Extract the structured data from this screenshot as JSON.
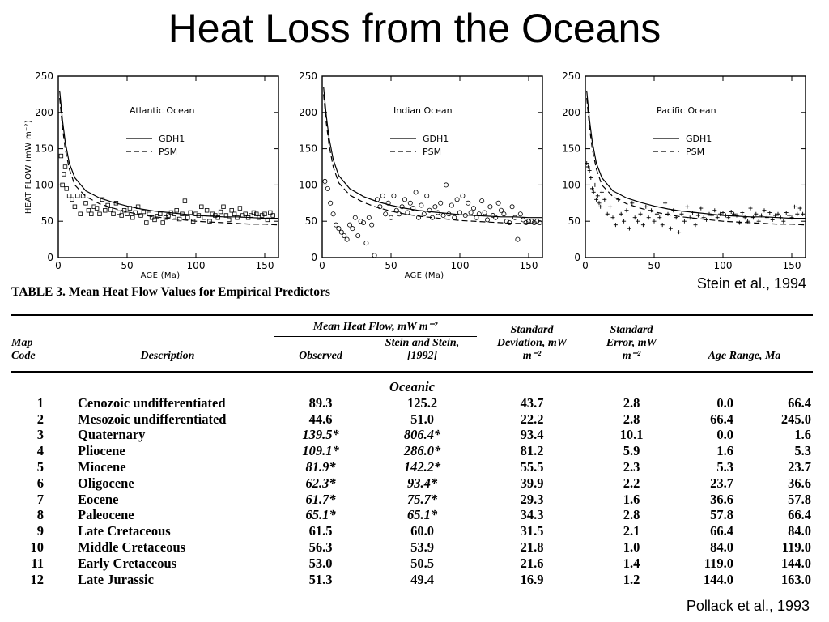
{
  "slide": {
    "title": "Heat Loss from the Oceans",
    "citation_top": "Stein et al., 1994",
    "citation_bottom": "Pollack et al., 1993"
  },
  "chart_data": [
    {
      "type": "scatter",
      "title": "Atlantic Ocean",
      "xlabel": "AGE (Ma)",
      "ylabel": "HEAT FLOW (mW m⁻²)",
      "xlim": [
        0,
        160
      ],
      "ylim": [
        0,
        250
      ],
      "xticks": [
        0,
        50,
        100,
        150
      ],
      "yticks": [
        0,
        50,
        100,
        150,
        200,
        250
      ],
      "legend": [
        "GDH1",
        "PSM"
      ],
      "legend_position": "top-center",
      "marker": "square",
      "series": [
        {
          "name": "GDH1",
          "kind": "line",
          "dash": "solid",
          "x": [
            1,
            3,
            5,
            8,
            12,
            20,
            30,
            40,
            50,
            60,
            70,
            80,
            90,
            100,
            110,
            120,
            130,
            140,
            150,
            160
          ],
          "y": [
            230,
            190,
            160,
            130,
            110,
            92,
            82,
            76,
            71,
            67,
            64,
            62,
            60,
            58,
            57,
            56,
            56,
            55,
            54,
            54
          ]
        },
        {
          "name": "PSM",
          "kind": "line",
          "dash": "dashed",
          "x": [
            1,
            3,
            5,
            8,
            12,
            20,
            30,
            40,
            50,
            60,
            70,
            80,
            90,
            100,
            110,
            120,
            130,
            140,
            150,
            160
          ],
          "y": [
            220,
            180,
            150,
            122,
            100,
            84,
            74,
            68,
            63,
            59,
            56,
            54,
            52,
            50,
            49,
            48,
            47,
            46,
            46,
            45
          ]
        },
        {
          "name": "observed",
          "kind": "points",
          "x": [
            2,
            3,
            4,
            5,
            6,
            8,
            10,
            12,
            14,
            16,
            18,
            20,
            22,
            24,
            26,
            28,
            30,
            32,
            34,
            36,
            38,
            40,
            42,
            44,
            46,
            48,
            50,
            52,
            54,
            56,
            58,
            60,
            62,
            64,
            66,
            68,
            70,
            72,
            74,
            76,
            78,
            80,
            82,
            84,
            86,
            88,
            90,
            92,
            94,
            96,
            98,
            100,
            102,
            104,
            106,
            108,
            110,
            112,
            114,
            116,
            118,
            120,
            122,
            124,
            126,
            128,
            130,
            132,
            134,
            136,
            138,
            140,
            142,
            144,
            146,
            148,
            150,
            152,
            154,
            156
          ],
          "y": [
            140,
            100,
            115,
            125,
            95,
            85,
            80,
            70,
            85,
            60,
            85,
            75,
            65,
            60,
            70,
            68,
            60,
            80,
            65,
            72,
            66,
            60,
            75,
            62,
            58,
            65,
            60,
            68,
            55,
            62,
            70,
            58,
            63,
            48,
            60,
            55,
            52,
            57,
            60,
            48,
            55,
            58,
            62,
            55,
            65,
            53,
            60,
            78,
            55,
            62,
            50,
            60,
            58,
            70,
            55,
            65,
            50,
            60,
            58,
            55,
            63,
            70,
            58,
            52,
            65,
            60,
            55,
            68,
            58,
            60,
            55,
            58,
            62,
            60,
            55,
            58,
            60,
            52,
            62,
            58
          ]
        }
      ]
    },
    {
      "type": "scatter",
      "title": "Indian Ocean",
      "xlabel": "AGE (Ma)",
      "ylabel": "",
      "xlim": [
        0,
        160
      ],
      "ylim": [
        0,
        250
      ],
      "xticks": [
        0,
        50,
        100,
        150
      ],
      "yticks": [
        0,
        50,
        100,
        150,
        200,
        250
      ],
      "legend": [
        "GDH1",
        "PSM"
      ],
      "legend_position": "top-center",
      "marker": "circle",
      "series": [
        {
          "name": "GDH1",
          "kind": "line",
          "dash": "solid",
          "x": [
            1,
            3,
            5,
            8,
            12,
            20,
            30,
            40,
            50,
            60,
            70,
            80,
            90,
            100,
            110,
            120,
            130,
            140,
            150,
            160
          ],
          "y": [
            235,
            195,
            165,
            135,
            113,
            95,
            84,
            77,
            72,
            68,
            65,
            63,
            61,
            59,
            58,
            57,
            56,
            56,
            55,
            55
          ]
        },
        {
          "name": "PSM",
          "kind": "line",
          "dash": "dashed",
          "x": [
            1,
            3,
            5,
            8,
            12,
            20,
            30,
            40,
            50,
            60,
            70,
            80,
            90,
            100,
            110,
            120,
            130,
            140,
            150,
            160
          ],
          "y": [
            225,
            185,
            155,
            125,
            103,
            86,
            76,
            69,
            64,
            60,
            57,
            55,
            53,
            51,
            50,
            49,
            48,
            47,
            47,
            46
          ]
        },
        {
          "name": "observed",
          "kind": "points",
          "x": [
            2,
            4,
            6,
            8,
            10,
            12,
            14,
            16,
            18,
            20,
            22,
            24,
            26,
            28,
            30,
            32,
            34,
            36,
            38,
            40,
            42,
            44,
            46,
            48,
            50,
            52,
            54,
            56,
            58,
            60,
            62,
            64,
            66,
            68,
            70,
            72,
            74,
            76,
            78,
            80,
            82,
            84,
            86,
            88,
            90,
            92,
            94,
            96,
            98,
            100,
            102,
            104,
            106,
            108,
            110,
            112,
            114,
            116,
            118,
            120,
            122,
            124,
            126,
            128,
            130,
            132,
            134,
            136,
            138,
            140,
            142,
            144,
            146,
            148,
            150,
            152,
            154,
            156,
            158
          ],
          "y": [
            105,
            95,
            75,
            60,
            45,
            40,
            35,
            30,
            25,
            45,
            40,
            55,
            30,
            50,
            48,
            20,
            55,
            45,
            3,
            80,
            70,
            85,
            60,
            75,
            55,
            85,
            65,
            60,
            70,
            80,
            62,
            75,
            68,
            90,
            55,
            72,
            60,
            85,
            65,
            55,
            70,
            62,
            75,
            58,
            100,
            60,
            72,
            55,
            80,
            62,
            85,
            58,
            75,
            62,
            68,
            55,
            60,
            78,
            62,
            52,
            70,
            58,
            55,
            75,
            65,
            60,
            50,
            48,
            70,
            55,
            25,
            60,
            52,
            48,
            50,
            50,
            48,
            50,
            48
          ]
        }
      ]
    },
    {
      "type": "scatter",
      "title": "Pacific Ocean",
      "xlabel": "",
      "ylabel": "",
      "xlim": [
        0,
        160
      ],
      "ylim": [
        0,
        250
      ],
      "xticks": [
        0,
        50,
        100,
        150
      ],
      "yticks": [
        0,
        50,
        100,
        150,
        200,
        250
      ],
      "legend": [
        "GDH1",
        "PSM"
      ],
      "legend_position": "top-center",
      "marker": "plus",
      "series": [
        {
          "name": "GDH1",
          "kind": "line",
          "dash": "solid",
          "x": [
            1,
            3,
            5,
            8,
            12,
            20,
            30,
            40,
            50,
            60,
            70,
            80,
            90,
            100,
            110,
            120,
            130,
            140,
            150,
            160
          ],
          "y": [
            230,
            190,
            160,
            130,
            110,
            92,
            82,
            76,
            71,
            67,
            64,
            62,
            60,
            58,
            57,
            56,
            56,
            55,
            54,
            54
          ]
        },
        {
          "name": "PSM",
          "kind": "line",
          "dash": "dashed",
          "x": [
            1,
            3,
            5,
            8,
            12,
            20,
            30,
            40,
            50,
            60,
            70,
            80,
            90,
            100,
            110,
            120,
            130,
            140,
            150,
            160
          ],
          "y": [
            220,
            180,
            150,
            122,
            100,
            84,
            74,
            68,
            63,
            59,
            56,
            54,
            52,
            50,
            49,
            48,
            47,
            46,
            46,
            45
          ]
        },
        {
          "name": "observed",
          "kind": "points",
          "x": [
            1,
            2,
            3,
            4,
            5,
            6,
            7,
            8,
            9,
            10,
            11,
            12,
            14,
            16,
            18,
            20,
            22,
            24,
            26,
            28,
            30,
            32,
            34,
            36,
            38,
            40,
            42,
            44,
            46,
            48,
            50,
            52,
            54,
            56,
            58,
            60,
            62,
            64,
            66,
            68,
            70,
            72,
            74,
            76,
            78,
            80,
            82,
            84,
            86,
            88,
            90,
            92,
            94,
            96,
            98,
            100,
            102,
            104,
            106,
            108,
            110,
            112,
            114,
            116,
            118,
            120,
            122,
            124,
            126,
            128,
            130,
            132,
            134,
            136,
            138,
            140,
            142,
            144,
            146,
            148,
            150,
            152,
            154,
            156,
            158
          ],
          "y": [
            130,
            125,
            120,
            110,
            95,
            90,
            100,
            80,
            85,
            75,
            70,
            90,
            80,
            60,
            70,
            55,
            45,
            80,
            60,
            50,
            65,
            40,
            75,
            55,
            50,
            60,
            45,
            70,
            55,
            65,
            50,
            60,
            55,
            45,
            75,
            60,
            40,
            65,
            55,
            35,
            60,
            50,
            70,
            55,
            62,
            45,
            58,
            68,
            55,
            52,
            60,
            58,
            65,
            55,
            60,
            62,
            58,
            55,
            63,
            60,
            58,
            48,
            62,
            55,
            50,
            68,
            55,
            60,
            50,
            58,
            65,
            55,
            62,
            52,
            58,
            60,
            55,
            50,
            62,
            58,
            55,
            70,
            60,
            68,
            60
          ]
        }
      ]
    },
    {
      "type": "table",
      "title": "TABLE 3. Mean Heat Flow Values for Empirical Predictors",
      "headers": {
        "map_code": "Map Code",
        "description": "Description",
        "mean_heat_flow": "Mean Heat Flow, mW m⁻²",
        "observed": "Observed",
        "stein": "Stein and Stein, [1992]",
        "std_dev": "Standard Deviation, mW m⁻²",
        "std_err": "Standard Error, mW m⁻²",
        "age_range": "Age Range, Ma",
        "section": "Oceanic"
      },
      "rows": [
        {
          "code": "1",
          "description": "Cenozoic undifferentiated",
          "observed": "89.3",
          "stein": "125.2",
          "std_dev": "43.7",
          "std_err": "2.8",
          "age_min": "0.0",
          "age_max": "66.4",
          "italic": false
        },
        {
          "code": "2",
          "description": "Mesozoic undifferentiated",
          "observed": "44.6",
          "stein": "51.0",
          "std_dev": "22.2",
          "std_err": "2.8",
          "age_min": "66.4",
          "age_max": "245.0",
          "italic": false
        },
        {
          "code": "3",
          "description": "Quaternary",
          "observed": "139.5*",
          "stein": "806.4*",
          "std_dev": "93.4",
          "std_err": "10.1",
          "age_min": "0.0",
          "age_max": "1.6",
          "italic": true
        },
        {
          "code": "4",
          "description": "Pliocene",
          "observed": "109.1*",
          "stein": "286.0*",
          "std_dev": "81.2",
          "std_err": "5.9",
          "age_min": "1.6",
          "age_max": "5.3",
          "italic": true
        },
        {
          "code": "5",
          "description": "Miocene",
          "observed": "81.9*",
          "stein": "142.2*",
          "std_dev": "55.5",
          "std_err": "2.3",
          "age_min": "5.3",
          "age_max": "23.7",
          "italic": true
        },
        {
          "code": "6",
          "description": "Oligocene",
          "observed": "62.3*",
          "stein": "93.4*",
          "std_dev": "39.9",
          "std_err": "2.2",
          "age_min": "23.7",
          "age_max": "36.6",
          "italic": true
        },
        {
          "code": "7",
          "description": "Eocene",
          "observed": "61.7*",
          "stein": "75.7*",
          "std_dev": "29.3",
          "std_err": "1.6",
          "age_min": "36.6",
          "age_max": "57.8",
          "italic": true
        },
        {
          "code": "8",
          "description": "Paleocene",
          "observed": "65.1*",
          "stein": "65.1*",
          "std_dev": "34.3",
          "std_err": "2.8",
          "age_min": "57.8",
          "age_max": "66.4",
          "italic": true
        },
        {
          "code": "9",
          "description": "Late Cretaceous",
          "observed": "61.5",
          "stein": "60.0",
          "std_dev": "31.5",
          "std_err": "2.1",
          "age_min": "66.4",
          "age_max": "84.0",
          "italic": false
        },
        {
          "code": "10",
          "description": "Middle Cretaceous",
          "observed": "56.3",
          "stein": "53.9",
          "std_dev": "21.8",
          "std_err": "1.0",
          "age_min": "84.0",
          "age_max": "119.0",
          "italic": false
        },
        {
          "code": "11",
          "description": "Early Cretaceous",
          "observed": "53.0",
          "stein": "50.5",
          "std_dev": "21.6",
          "std_err": "1.4",
          "age_min": "119.0",
          "age_max": "144.0",
          "italic": false
        },
        {
          "code": "12",
          "description": "Late Jurassic",
          "observed": "51.3",
          "stein": "49.4",
          "std_dev": "16.9",
          "std_err": "1.2",
          "age_min": "144.0",
          "age_max": "163.0",
          "italic": false
        }
      ]
    }
  ]
}
